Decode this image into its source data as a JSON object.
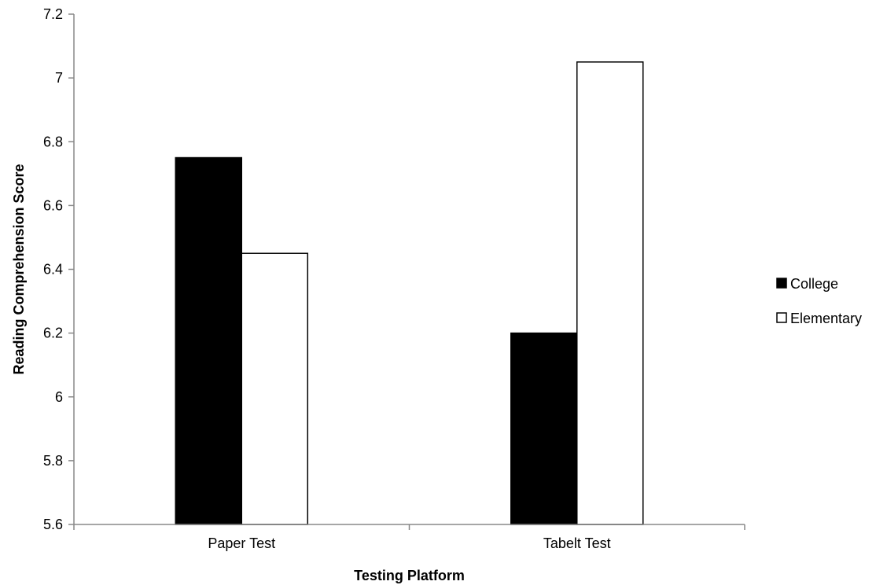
{
  "chart_data": {
    "type": "bar",
    "title": "",
    "xlabel": "Testing Platform",
    "ylabel": "Reading Comprehension Score",
    "categories": [
      "Paper Test",
      "Tabelt Test"
    ],
    "series": [
      {
        "name": "College",
        "values": [
          6.75,
          6.2
        ],
        "color": "#000000"
      },
      {
        "name": "Elementary",
        "values": [
          6.45,
          7.05
        ],
        "color": "#ffffff"
      }
    ],
    "ylim": [
      5.6,
      7.2
    ],
    "yticks": [
      "5.6",
      "5.8",
      "6",
      "6.2",
      "6.4",
      "6.6",
      "6.8",
      "7",
      "7.2"
    ],
    "grid": false,
    "legend_position": "right"
  }
}
